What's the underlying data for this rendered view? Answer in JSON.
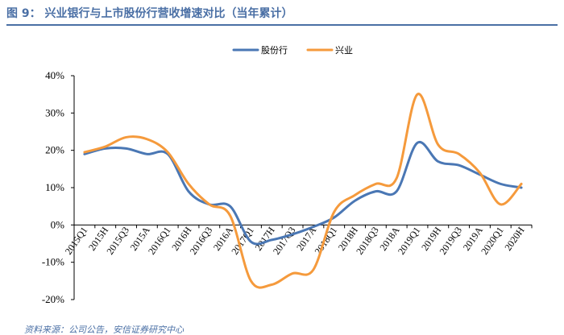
{
  "figure_title": "图 9： 兴业银行与上市股份行营收增速对比（当年累计）",
  "source_note": "资料来源：公司公告，安信证券研究中心",
  "colors": {
    "series_1": "#4a77b4",
    "series_2": "#f59a3c",
    "title": "#4a6fa5"
  },
  "chart_data": {
    "type": "line",
    "categories": [
      "2015Q1",
      "2015H",
      "2015Q3",
      "2015A",
      "2016Q1",
      "2016H",
      "2016Q3",
      "2016A",
      "2017Q1",
      "2017H",
      "2017Q3",
      "2017A",
      "2018Q1",
      "2018H",
      "2018Q3",
      "2018A",
      "2019Q1",
      "2019H",
      "2019Q3",
      "2019A",
      "2020Q1",
      "2020H"
    ],
    "series": [
      {
        "name": "股份行",
        "values": [
          19,
          20.5,
          20.5,
          19,
          19,
          9,
          5.5,
          5,
          -4.5,
          -4,
          -2.5,
          -0.5,
          2,
          6.5,
          9,
          9,
          22,
          17,
          16,
          13.5,
          11,
          10
        ]
      },
      {
        "name": "兴业",
        "values": [
          19.5,
          21,
          23.5,
          23,
          19.5,
          11,
          5.5,
          2.5,
          -15,
          -16,
          -13,
          -12,
          3.5,
          8,
          11,
          12.5,
          35,
          21.5,
          19,
          14,
          5.5,
          11
        ]
      }
    ],
    "ylim": [
      -20,
      40
    ],
    "yticks": [
      -20,
      -10,
      0,
      10,
      20,
      30,
      40
    ],
    "ytick_labels": [
      "-20%",
      "-10%",
      "0%",
      "10%",
      "20%",
      "30%",
      "40%"
    ],
    "legend_position": "top-center",
    "grid": false
  }
}
